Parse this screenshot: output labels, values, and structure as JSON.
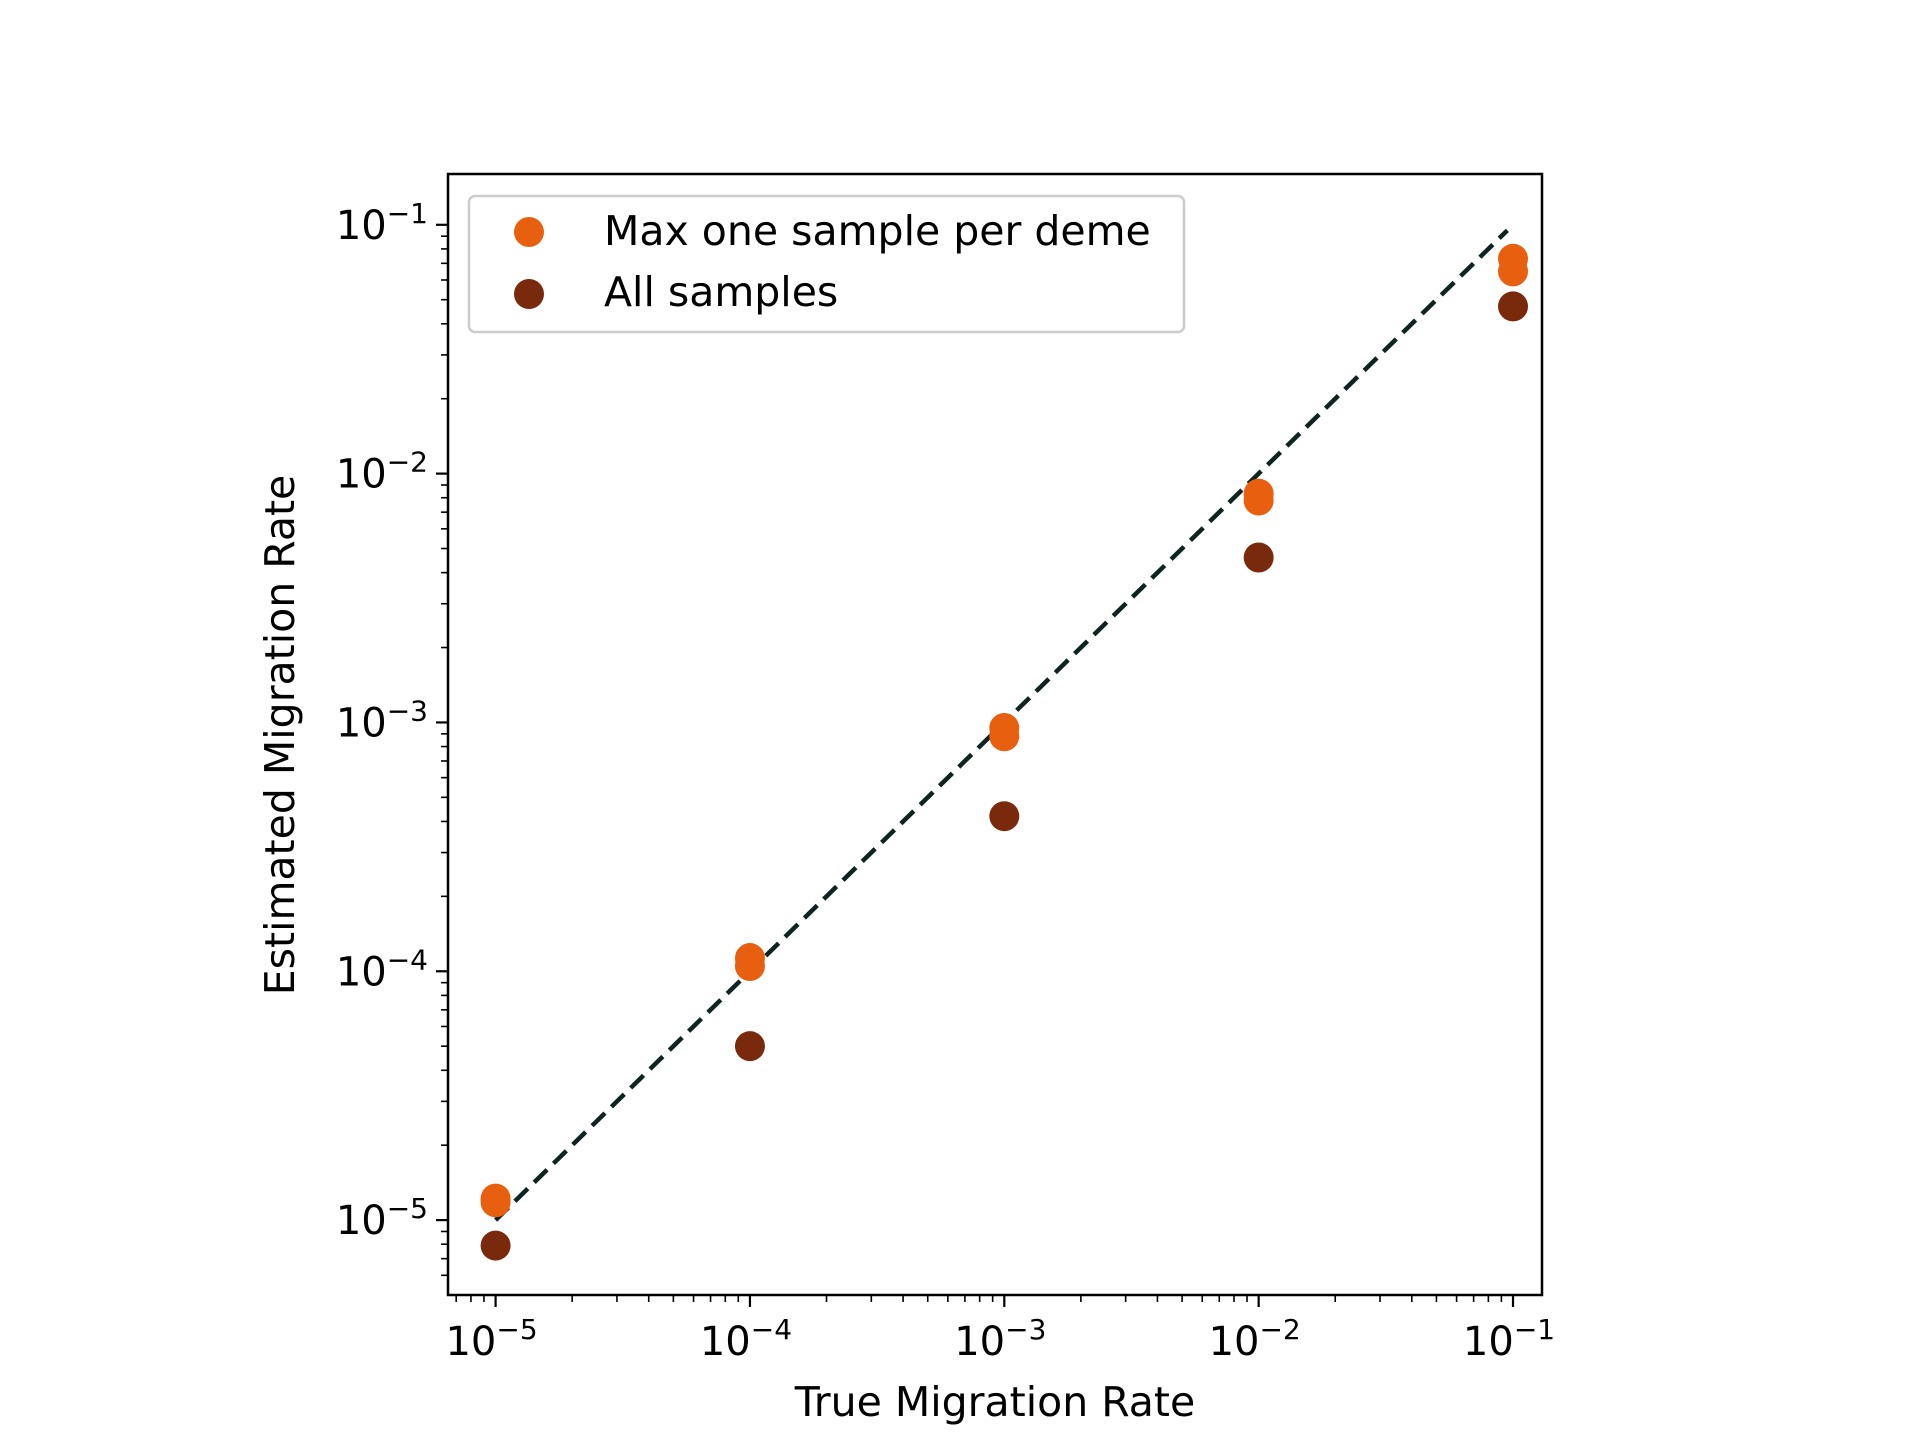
{
  "chart_data": {
    "type": "scatter",
    "xlabel": "True Migration Rate",
    "ylabel": "Estimated Migration Rate",
    "xscale": "log",
    "yscale": "log",
    "xlim": [
      6.5e-06,
      0.13
    ],
    "ylim": [
      5e-06,
      0.16
    ],
    "x_ticks": [
      {
        "base": "10",
        "exp": "−5",
        "value": 1e-05
      },
      {
        "base": "10",
        "exp": "−4",
        "value": 0.0001
      },
      {
        "base": "10",
        "exp": "−3",
        "value": 0.001
      },
      {
        "base": "10",
        "exp": "−2",
        "value": 0.01
      },
      {
        "base": "10",
        "exp": "−1",
        "value": 0.1
      }
    ],
    "y_ticks": [
      {
        "base": "10",
        "exp": "−5",
        "value": 1e-05
      },
      {
        "base": "10",
        "exp": "−4",
        "value": 0.0001
      },
      {
        "base": "10",
        "exp": "−3",
        "value": 0.001
      },
      {
        "base": "10",
        "exp": "−2",
        "value": 0.01
      },
      {
        "base": "10",
        "exp": "−1",
        "value": 0.1
      }
    ],
    "legend_position": "top-left",
    "reference_line": {
      "style": "dashed",
      "color": "#0d2420",
      "x": [
        1e-05,
        0.095
      ],
      "y": [
        1e-05,
        0.095
      ]
    },
    "series": [
      {
        "name": "Max one sample per deme",
        "color": "#e8600f",
        "points": [
          {
            "x": 1e-05,
            "y": 1.18e-05
          },
          {
            "x": 1e-05,
            "y": 1.22e-05
          },
          {
            "x": 0.0001,
            "y": 0.000105
          },
          {
            "x": 0.0001,
            "y": 0.000113
          },
          {
            "x": 0.001,
            "y": 0.00088
          },
          {
            "x": 0.001,
            "y": 0.00095
          },
          {
            "x": 0.01,
            "y": 0.0078
          },
          {
            "x": 0.01,
            "y": 0.0083
          },
          {
            "x": 0.1,
            "y": 0.065
          },
          {
            "x": 0.1,
            "y": 0.073
          }
        ]
      },
      {
        "name": "All samples",
        "color": "#7a2a0c",
        "points": [
          {
            "x": 1e-05,
            "y": 7.9e-06
          },
          {
            "x": 0.0001,
            "y": 5e-05
          },
          {
            "x": 0.001,
            "y": 0.00042
          },
          {
            "x": 0.01,
            "y": 0.0046
          },
          {
            "x": 0.1,
            "y": 0.047
          }
        ]
      }
    ]
  }
}
